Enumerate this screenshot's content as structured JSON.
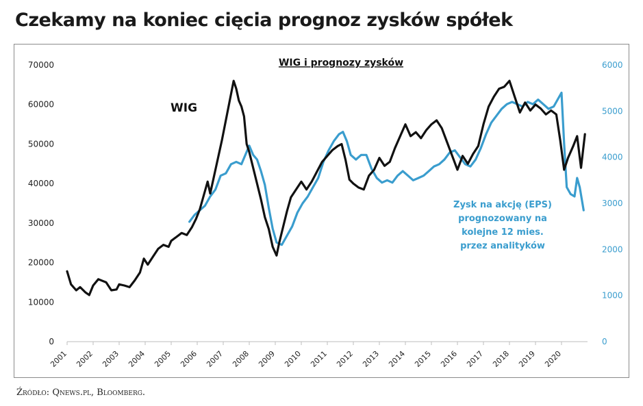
{
  "page_title": "Czekamy na koniec cięcia prognoz zysków spółek",
  "source": "Źródło: Qnews.pl, Bloomberg.",
  "chart_data": {
    "type": "line",
    "title": "WIG i prognozy zysków",
    "x_ticks": [
      "2001",
      "2002",
      "2003",
      "2004",
      "2005",
      "2006",
      "2007",
      "2008",
      "2009",
      "2010",
      "2011",
      "2012",
      "2013",
      "2014",
      "2015",
      "2016",
      "2017",
      "2018",
      "2019",
      "2020"
    ],
    "y_left": {
      "ticks": [
        "0",
        "10000",
        "20000",
        "30000",
        "40000",
        "50000",
        "60000",
        "70000"
      ],
      "range": [
        0,
        70000
      ]
    },
    "y_right": {
      "ticks": [
        "0",
        "1000",
        "2000",
        "3000",
        "4000",
        "5000",
        "6000"
      ],
      "range": [
        0,
        6000
      ]
    },
    "xlim": [
      2001,
      2021
    ],
    "grid": false,
    "colors": {
      "wig": "#111111",
      "eps": "#3a9dce",
      "right_axis": "#3a9dce"
    },
    "annotations": {
      "wig_label": "WIG",
      "eps_label_lines": [
        "Zysk na akcję (EPS)",
        "prognozowany na",
        "kolejne 12 mies.",
        "przez analityków"
      ]
    },
    "series": [
      {
        "name": "WIG",
        "axis": "left",
        "points": [
          [
            2001.0,
            17800
          ],
          [
            2001.15,
            14500
          ],
          [
            2001.35,
            13000
          ],
          [
            2001.5,
            13800
          ],
          [
            2001.7,
            12500
          ],
          [
            2001.85,
            11800
          ],
          [
            2002.0,
            14200
          ],
          [
            2002.2,
            15800
          ],
          [
            2002.5,
            15000
          ],
          [
            2002.7,
            13000
          ],
          [
            2002.9,
            13200
          ],
          [
            2003.0,
            14500
          ],
          [
            2003.2,
            14200
          ],
          [
            2003.4,
            13800
          ],
          [
            2003.6,
            15500
          ],
          [
            2003.8,
            17500
          ],
          [
            2003.95,
            21000
          ],
          [
            2004.1,
            19500
          ],
          [
            2004.3,
            21500
          ],
          [
            2004.5,
            23500
          ],
          [
            2004.7,
            24500
          ],
          [
            2004.9,
            24000
          ],
          [
            2005.0,
            25500
          ],
          [
            2005.2,
            26500
          ],
          [
            2005.4,
            27500
          ],
          [
            2005.6,
            27000
          ],
          [
            2005.8,
            29000
          ],
          [
            2005.95,
            31000
          ],
          [
            2006.1,
            33500
          ],
          [
            2006.25,
            37000
          ],
          [
            2006.4,
            40500
          ],
          [
            2006.5,
            37500
          ],
          [
            2006.65,
            42000
          ],
          [
            2006.75,
            45000
          ],
          [
            2006.85,
            48000
          ],
          [
            2006.95,
            51000
          ],
          [
            2007.1,
            56000
          ],
          [
            2007.25,
            61000
          ],
          [
            2007.4,
            66000
          ],
          [
            2007.5,
            64000
          ],
          [
            2007.6,
            61000
          ],
          [
            2007.7,
            59500
          ],
          [
            2007.8,
            57000
          ],
          [
            2007.9,
            50000
          ],
          [
            2008.0,
            48000
          ],
          [
            2008.15,
            44000
          ],
          [
            2008.3,
            40000
          ],
          [
            2008.45,
            36000
          ],
          [
            2008.6,
            31500
          ],
          [
            2008.75,
            28500
          ],
          [
            2008.9,
            24000
          ],
          [
            2009.05,
            21800
          ],
          [
            2009.15,
            25000
          ],
          [
            2009.3,
            29000
          ],
          [
            2009.45,
            33000
          ],
          [
            2009.6,
            36500
          ],
          [
            2009.8,
            38500
          ],
          [
            2010.0,
            40500
          ],
          [
            2010.2,
            38500
          ],
          [
            2010.4,
            40500
          ],
          [
            2010.6,
            43000
          ],
          [
            2010.8,
            45500
          ],
          [
            2011.0,
            47000
          ],
          [
            2011.2,
            48500
          ],
          [
            2011.4,
            49500
          ],
          [
            2011.55,
            50000
          ],
          [
            2011.7,
            46000
          ],
          [
            2011.85,
            41000
          ],
          [
            2012.0,
            40000
          ],
          [
            2012.2,
            39000
          ],
          [
            2012.4,
            38500
          ],
          [
            2012.6,
            42000
          ],
          [
            2012.8,
            43500
          ],
          [
            2013.0,
            46500
          ],
          [
            2013.2,
            44500
          ],
          [
            2013.4,
            45500
          ],
          [
            2013.6,
            49000
          ],
          [
            2013.8,
            52000
          ],
          [
            2014.0,
            55000
          ],
          [
            2014.2,
            52000
          ],
          [
            2014.4,
            53000
          ],
          [
            2014.6,
            51500
          ],
          [
            2014.8,
            53500
          ],
          [
            2015.0,
            55000
          ],
          [
            2015.2,
            56000
          ],
          [
            2015.4,
            54000
          ],
          [
            2015.6,
            50500
          ],
          [
            2015.8,
            47000
          ],
          [
            2016.0,
            43500
          ],
          [
            2016.2,
            47000
          ],
          [
            2016.4,
            45000
          ],
          [
            2016.6,
            47500
          ],
          [
            2016.8,
            49500
          ],
          [
            2017.0,
            55000
          ],
          [
            2017.2,
            59500
          ],
          [
            2017.4,
            62000
          ],
          [
            2017.6,
            64000
          ],
          [
            2017.8,
            64500
          ],
          [
            2018.0,
            66000
          ],
          [
            2018.2,
            62000
          ],
          [
            2018.4,
            58000
          ],
          [
            2018.6,
            60500
          ],
          [
            2018.8,
            58500
          ],
          [
            2019.0,
            60000
          ],
          [
            2019.2,
            59000
          ],
          [
            2019.4,
            57500
          ],
          [
            2019.6,
            58500
          ],
          [
            2019.8,
            57500
          ],
          [
            2019.95,
            51000
          ],
          [
            2020.1,
            43500
          ],
          [
            2020.25,
            46500
          ],
          [
            2020.45,
            49500
          ],
          [
            2020.6,
            52000
          ],
          [
            2020.75,
            44000
          ],
          [
            2020.9,
            52500
          ]
        ]
      },
      {
        "name": "Zysk na akcję (EPS) prognozowany na kolejne 12 mies. przez analityków",
        "axis": "right",
        "points": [
          [
            2005.7,
            2600
          ],
          [
            2005.9,
            2750
          ],
          [
            2006.1,
            2850
          ],
          [
            2006.3,
            2950
          ],
          [
            2006.5,
            3150
          ],
          [
            2006.7,
            3300
          ],
          [
            2006.9,
            3600
          ],
          [
            2007.1,
            3650
          ],
          [
            2007.3,
            3850
          ],
          [
            2007.5,
            3900
          ],
          [
            2007.7,
            3850
          ],
          [
            2007.85,
            4050
          ],
          [
            2008.0,
            4250
          ],
          [
            2008.15,
            4050
          ],
          [
            2008.3,
            3950
          ],
          [
            2008.45,
            3700
          ],
          [
            2008.6,
            3400
          ],
          [
            2008.75,
            2900
          ],
          [
            2008.9,
            2450
          ],
          [
            2009.05,
            2150
          ],
          [
            2009.25,
            2100
          ],
          [
            2009.45,
            2300
          ],
          [
            2009.65,
            2500
          ],
          [
            2009.85,
            2800
          ],
          [
            2010.05,
            3000
          ],
          [
            2010.25,
            3150
          ],
          [
            2010.45,
            3350
          ],
          [
            2010.65,
            3550
          ],
          [
            2010.85,
            3900
          ],
          [
            2011.05,
            4150
          ],
          [
            2011.25,
            4350
          ],
          [
            2011.45,
            4500
          ],
          [
            2011.6,
            4550
          ],
          [
            2011.75,
            4350
          ],
          [
            2011.9,
            4050
          ],
          [
            2012.1,
            3950
          ],
          [
            2012.3,
            4050
          ],
          [
            2012.5,
            4050
          ],
          [
            2012.7,
            3750
          ],
          [
            2012.9,
            3550
          ],
          [
            2013.1,
            3450
          ],
          [
            2013.3,
            3500
          ],
          [
            2013.5,
            3450
          ],
          [
            2013.7,
            3600
          ],
          [
            2013.9,
            3700
          ],
          [
            2014.1,
            3600
          ],
          [
            2014.3,
            3500
          ],
          [
            2014.5,
            3550
          ],
          [
            2014.7,
            3600
          ],
          [
            2014.9,
            3700
          ],
          [
            2015.1,
            3800
          ],
          [
            2015.3,
            3850
          ],
          [
            2015.5,
            3950
          ],
          [
            2015.7,
            4100
          ],
          [
            2015.9,
            4150
          ],
          [
            2016.1,
            4000
          ],
          [
            2016.3,
            3850
          ],
          [
            2016.5,
            3800
          ],
          [
            2016.7,
            3950
          ],
          [
            2016.9,
            4200
          ],
          [
            2017.1,
            4500
          ],
          [
            2017.3,
            4750
          ],
          [
            2017.5,
            4900
          ],
          [
            2017.7,
            5050
          ],
          [
            2017.9,
            5150
          ],
          [
            2018.1,
            5200
          ],
          [
            2018.3,
            5150
          ],
          [
            2018.5,
            5100
          ],
          [
            2018.7,
            5200
          ],
          [
            2018.9,
            5150
          ],
          [
            2019.1,
            5250
          ],
          [
            2019.3,
            5150
          ],
          [
            2019.5,
            5050
          ],
          [
            2019.7,
            5100
          ],
          [
            2019.85,
            5250
          ],
          [
            2020.0,
            5400
          ],
          [
            2020.1,
            4300
          ],
          [
            2020.2,
            3350
          ],
          [
            2020.35,
            3200
          ],
          [
            2020.5,
            3150
          ],
          [
            2020.6,
            3550
          ],
          [
            2020.7,
            3350
          ],
          [
            2020.85,
            2850
          ]
        ]
      }
    ]
  }
}
